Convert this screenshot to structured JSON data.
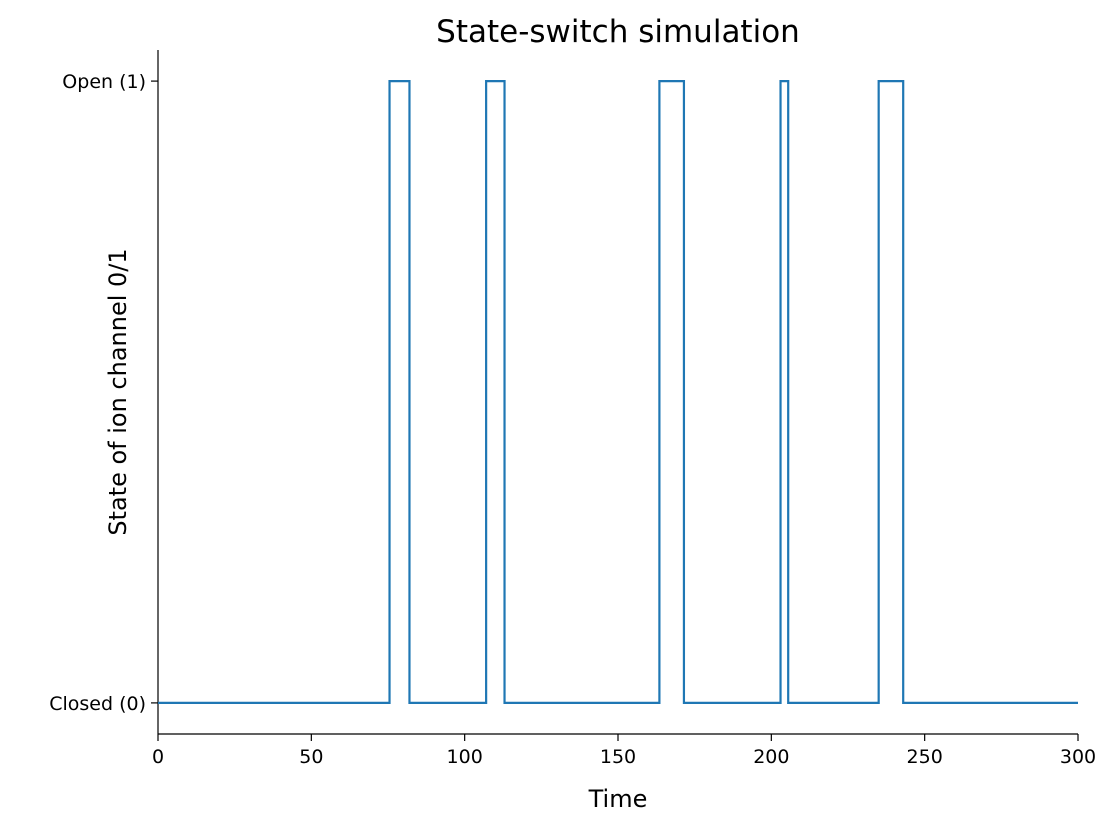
{
  "chart_data": {
    "type": "line",
    "step": true,
    "title": "State-switch simulation",
    "xlabel": "Time",
    "ylabel": "State of ion channel 0/1",
    "xlim": [
      0,
      300
    ],
    "ylim": [
      -0.05,
      1.05
    ],
    "xticks": [
      0,
      50,
      100,
      150,
      200,
      250,
      300
    ],
    "xtick_labels": [
      "0",
      "50",
      "100",
      "150",
      "200",
      "250",
      "300"
    ],
    "yticks": [
      0,
      1
    ],
    "ytick_labels": [
      "Closed (0)",
      "Open (1)"
    ],
    "grid": false,
    "legend": null,
    "series": [
      {
        "color": "#1f77b4",
        "points": [
          [
            0,
            0
          ],
          [
            75.5,
            0
          ],
          [
            75.5,
            1
          ],
          [
            82,
            1
          ],
          [
            82,
            0
          ],
          [
            107,
            0
          ],
          [
            107,
            1
          ],
          [
            113,
            1
          ],
          [
            113,
            0
          ],
          [
            163.5,
            0
          ],
          [
            163.5,
            1
          ],
          [
            171.5,
            1
          ],
          [
            171.5,
            0
          ],
          [
            203,
            0
          ],
          [
            203,
            1
          ],
          [
            205.5,
            1
          ],
          [
            205.5,
            0
          ],
          [
            235,
            0
          ],
          [
            235,
            1
          ],
          [
            243,
            1
          ],
          [
            243,
            0
          ],
          [
            300,
            0
          ]
        ]
      }
    ]
  }
}
